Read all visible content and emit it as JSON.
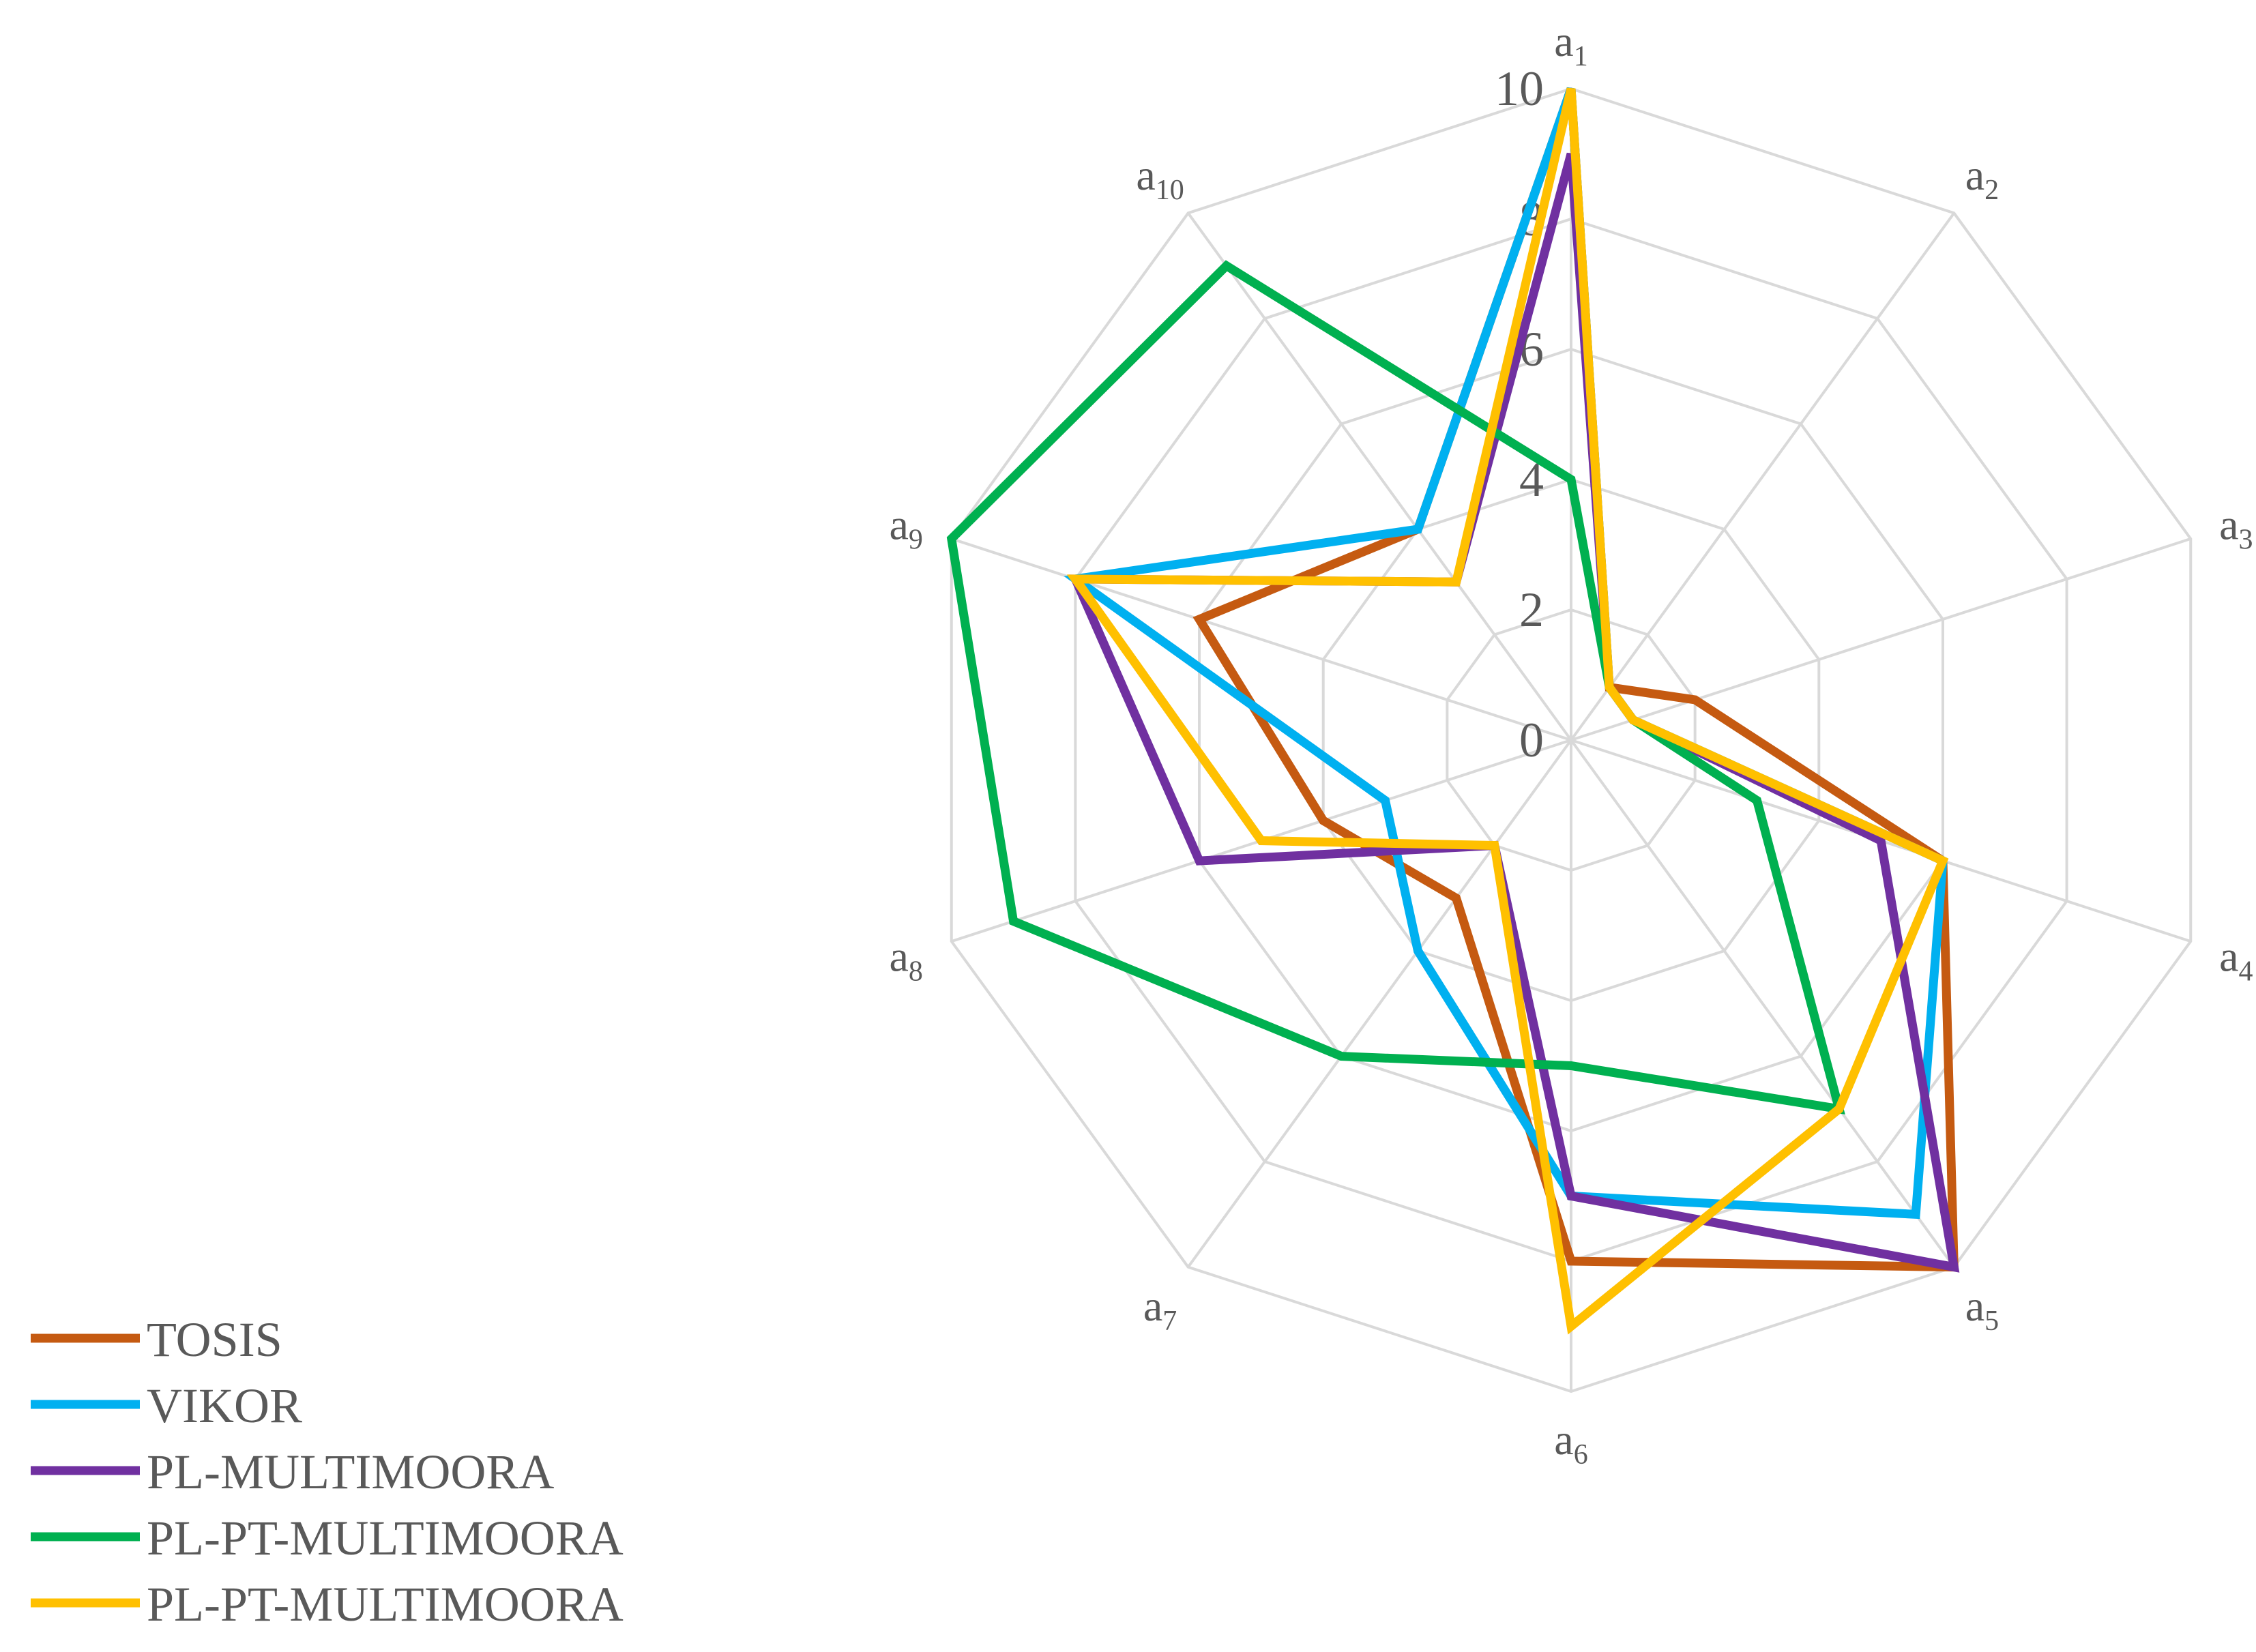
{
  "chart_data": {
    "type": "radar",
    "title": "",
    "categories": [
      {
        "base": "a",
        "sub": "1"
      },
      {
        "base": "a",
        "sub": "2"
      },
      {
        "base": "a",
        "sub": "3"
      },
      {
        "base": "a",
        "sub": "4"
      },
      {
        "base": "a",
        "sub": "5"
      },
      {
        "base": "a",
        "sub": "6"
      },
      {
        "base": "a",
        "sub": "7"
      },
      {
        "base": "a",
        "sub": "8"
      },
      {
        "base": "a",
        "sub": "9"
      },
      {
        "base": "a",
        "sub": "10"
      }
    ],
    "r_range": [
      0,
      10
    ],
    "r_ticks": [
      "0",
      "2",
      "4",
      "6",
      "8",
      "10"
    ],
    "grid": true,
    "legend_position": "bottom-left",
    "series": [
      {
        "name": "TOSIS",
        "color": "#c55a11",
        "values": [
          10,
          1,
          2,
          6,
          10,
          8,
          3,
          4,
          6,
          4
        ]
      },
      {
        "name": "VIKOR",
        "color": "#00b0f0",
        "values": [
          10,
          1,
          1,
          6,
          9,
          7,
          4,
          3,
          8,
          4
        ]
      },
      {
        "name": "PL-MULTIMOORA",
        "color": "#7030a0",
        "values": [
          9,
          1,
          1,
          5,
          10,
          7,
          2,
          6,
          8,
          3
        ]
      },
      {
        "name": "PL-PT-MULTIMOORA",
        "color": "#00b050",
        "values": [
          4,
          1,
          1,
          3,
          7,
          5,
          6,
          9,
          10,
          9
        ]
      },
      {
        "name": "PL-PT-MULTIMOORA",
        "color": "#ffc000",
        "values": [
          10,
          1,
          1,
          6,
          7,
          9,
          2,
          5,
          8,
          3
        ]
      }
    ]
  }
}
